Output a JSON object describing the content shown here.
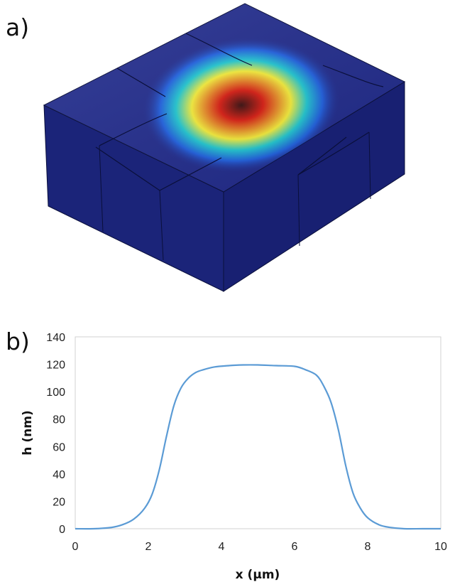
{
  "panels": {
    "a": "a)",
    "b": "b)"
  },
  "surface_plot": {
    "colors": {
      "background_field": "#202a8c",
      "side_front": "#1b2479",
      "side_right": "#182072",
      "bump_peak": "#3a0f0f",
      "bump_red": "#d91c12",
      "bump_yellow": "#f6ee3a",
      "bump_cyan": "#20c8d2",
      "bump_blue": "#1f5fe0"
    }
  },
  "chart_data": {
    "type": "line",
    "xlabel": "x (μm)",
    "ylabel": "h (nm)",
    "xlim": [
      0,
      10
    ],
    "ylim": [
      0,
      140
    ],
    "x_ticks": [
      "0",
      "2",
      "4",
      "6",
      "8",
      "10"
    ],
    "y_ticks": [
      "0",
      "20",
      "40",
      "60",
      "80",
      "100",
      "120",
      "140"
    ],
    "grid": false,
    "line_color": "#5b9bd5",
    "series": [
      {
        "x": [
          0,
          0.5,
          1.0,
          1.3,
          1.6,
          1.9,
          2.1,
          2.3,
          2.5,
          2.7,
          2.9,
          3.1,
          3.3,
          3.5,
          3.8,
          4.2,
          4.6,
          5.0,
          5.5,
          6.0,
          6.3,
          6.6,
          6.8,
          7.0,
          7.2,
          7.4,
          7.6,
          7.8,
          8.0,
          8.3,
          8.6,
          9.0,
          9.5,
          10.0
        ],
        "values": [
          0,
          0,
          1,
          3,
          7,
          15,
          25,
          43,
          68,
          90,
          103,
          110,
          114,
          116,
          118,
          119,
          119.5,
          119.5,
          119,
          118.5,
          116,
          112,
          104,
          92,
          72,
          46,
          26,
          15,
          8,
          3,
          1,
          0,
          0,
          0
        ]
      }
    ]
  }
}
